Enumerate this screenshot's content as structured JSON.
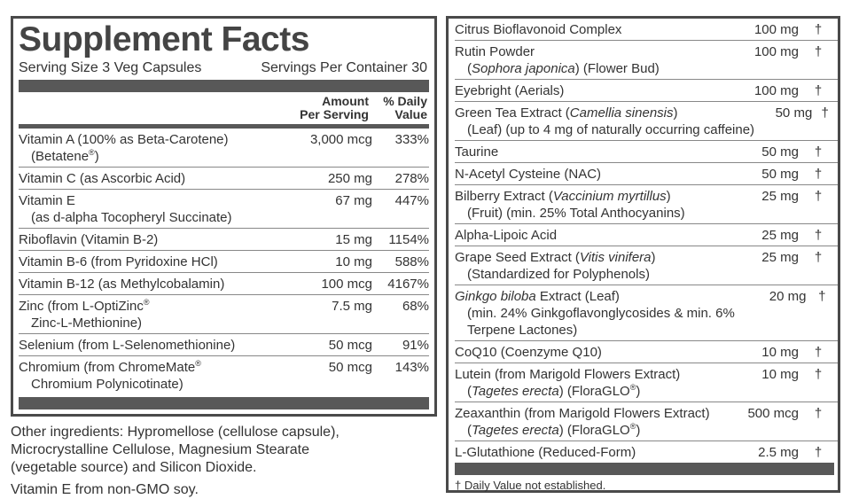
{
  "left": {
    "title": "Supplement Facts",
    "serving_size": "Serving Size 3 Veg Capsules",
    "servings_per_container": "Servings Per Container 30",
    "header": {
      "amount": [
        "Amount",
        "Per Serving"
      ],
      "dv": [
        "% Daily",
        "Value"
      ]
    },
    "rows": [
      {
        "name": [
          [
            "Vitamin A (100% as Beta-Carotene)"
          ],
          [
            "(Betatene",
            {
              "sup": "®"
            },
            ")"
          ]
        ],
        "amount": "3,000 mcg",
        "dv": "333%"
      },
      {
        "name": [
          [
            "Vitamin C (as Ascorbic Acid)"
          ]
        ],
        "amount": "250 mg",
        "dv": "278%"
      },
      {
        "name": [
          [
            "Vitamin E"
          ],
          [
            "(as d-alpha Tocopheryl Succinate)"
          ]
        ],
        "amount": "67 mg",
        "dv": "447%"
      },
      {
        "name": [
          [
            "Riboflavin (Vitamin B-2)"
          ]
        ],
        "amount": "15 mg",
        "dv": "1154%"
      },
      {
        "name": [
          [
            "Vitamin B-6 (from Pyridoxine HCl)"
          ]
        ],
        "amount": "10 mg",
        "dv": "588%"
      },
      {
        "name": [
          [
            "Vitamin B-12 (as Methylcobalamin)"
          ]
        ],
        "amount": "100 mcg",
        "dv": "4167%"
      },
      {
        "name": [
          [
            "Zinc (from L-OptiZinc",
            {
              "sup": "®"
            }
          ],
          [
            "Zinc-L-Methionine)"
          ]
        ],
        "amount": "7.5 mg",
        "dv": "68%"
      },
      {
        "name": [
          [
            "Selenium (from L-Selenomethionine)"
          ]
        ],
        "amount": "50 mcg",
        "dv": "91%"
      },
      {
        "name": [
          [
            "Chromium (from ChromeMate",
            {
              "sup": "®"
            }
          ],
          [
            "Chromium Polynicotinate)"
          ]
        ],
        "amount": "50 mcg",
        "dv": "143%"
      }
    ]
  },
  "other_ingredients": [
    "Other ingredients: Hypromellose (cellulose capsule),",
    "Microcrystalline Cellulose, Magnesium Stearate",
    "(vegetable source) and Silicon Dioxide."
  ],
  "note": "Vitamin E from non-GMO soy.",
  "right": {
    "rows": [
      {
        "name": [
          [
            "Citrus Bioflavonoid Complex"
          ]
        ],
        "amount": "100 mg",
        "dv": "†"
      },
      {
        "name": [
          [
            "Rutin Powder"
          ],
          [
            "(",
            {
              "italic": "Sophora japonica"
            },
            ") (Flower Bud)"
          ]
        ],
        "amount": "100 mg",
        "dv": "†"
      },
      {
        "name": [
          [
            "Eyebright (Aerials)"
          ]
        ],
        "amount": "100 mg",
        "dv": "†"
      },
      {
        "name": [
          [
            "Green Tea Extract (",
            {
              "italic": "Camellia sinensis"
            },
            ")"
          ],
          [
            "(Leaf) (up to 4 mg of naturally occurring caffeine)"
          ]
        ],
        "amount": "50 mg",
        "dv": "†"
      },
      {
        "name": [
          [
            "Taurine"
          ]
        ],
        "amount": "50 mg",
        "dv": "†"
      },
      {
        "name": [
          [
            "N-Acetyl Cysteine (NAC)"
          ]
        ],
        "amount": "50 mg",
        "dv": "†"
      },
      {
        "name": [
          [
            "Bilberry Extract (",
            {
              "italic": "Vaccinium myrtillus"
            },
            ")"
          ],
          [
            "(Fruit) (min. 25% Total Anthocyanins)"
          ]
        ],
        "amount": "25 mg",
        "dv": "†"
      },
      {
        "name": [
          [
            "Alpha-Lipoic Acid"
          ]
        ],
        "amount": "25 mg",
        "dv": "†"
      },
      {
        "name": [
          [
            "Grape Seed Extract (",
            {
              "italic": "Vitis vinifera"
            },
            ")"
          ],
          [
            "(Standardized for Polyphenols)"
          ]
        ],
        "amount": "25 mg",
        "dv": "†"
      },
      {
        "name": [
          [
            {
              "italic": "Ginkgo biloba"
            },
            " Extract (Leaf)"
          ],
          [
            "(min. 24% Ginkgoflavonglycosides & min. 6%"
          ],
          [
            "Terpene Lactones)"
          ]
        ],
        "amount": "20 mg",
        "dv": "†"
      },
      {
        "name": [
          [
            "CoQ10 (Coenzyme Q10)"
          ]
        ],
        "amount": "10 mg",
        "dv": "†"
      },
      {
        "name": [
          [
            "Lutein (from Marigold Flowers Extract)"
          ],
          [
            "(",
            {
              "italic": "Tagetes erecta"
            },
            ") (FloraGLO",
            {
              "sup": "®"
            },
            ")"
          ]
        ],
        "amount": "10 mg",
        "dv": "†"
      },
      {
        "name": [
          [
            "Zeaxanthin (from Marigold Flowers Extract)"
          ],
          [
            "(",
            {
              "italic": "Tagetes erecta"
            },
            ") (FloraGLO",
            {
              "sup": "®"
            },
            ")"
          ]
        ],
        "amount": "500 mcg",
        "dv": "†"
      },
      {
        "name": [
          [
            "L-Glutathione (Reduced-Form)"
          ]
        ],
        "amount": "2.5 mg",
        "dv": "†"
      }
    ],
    "footnote": "† Daily Value not established."
  }
}
